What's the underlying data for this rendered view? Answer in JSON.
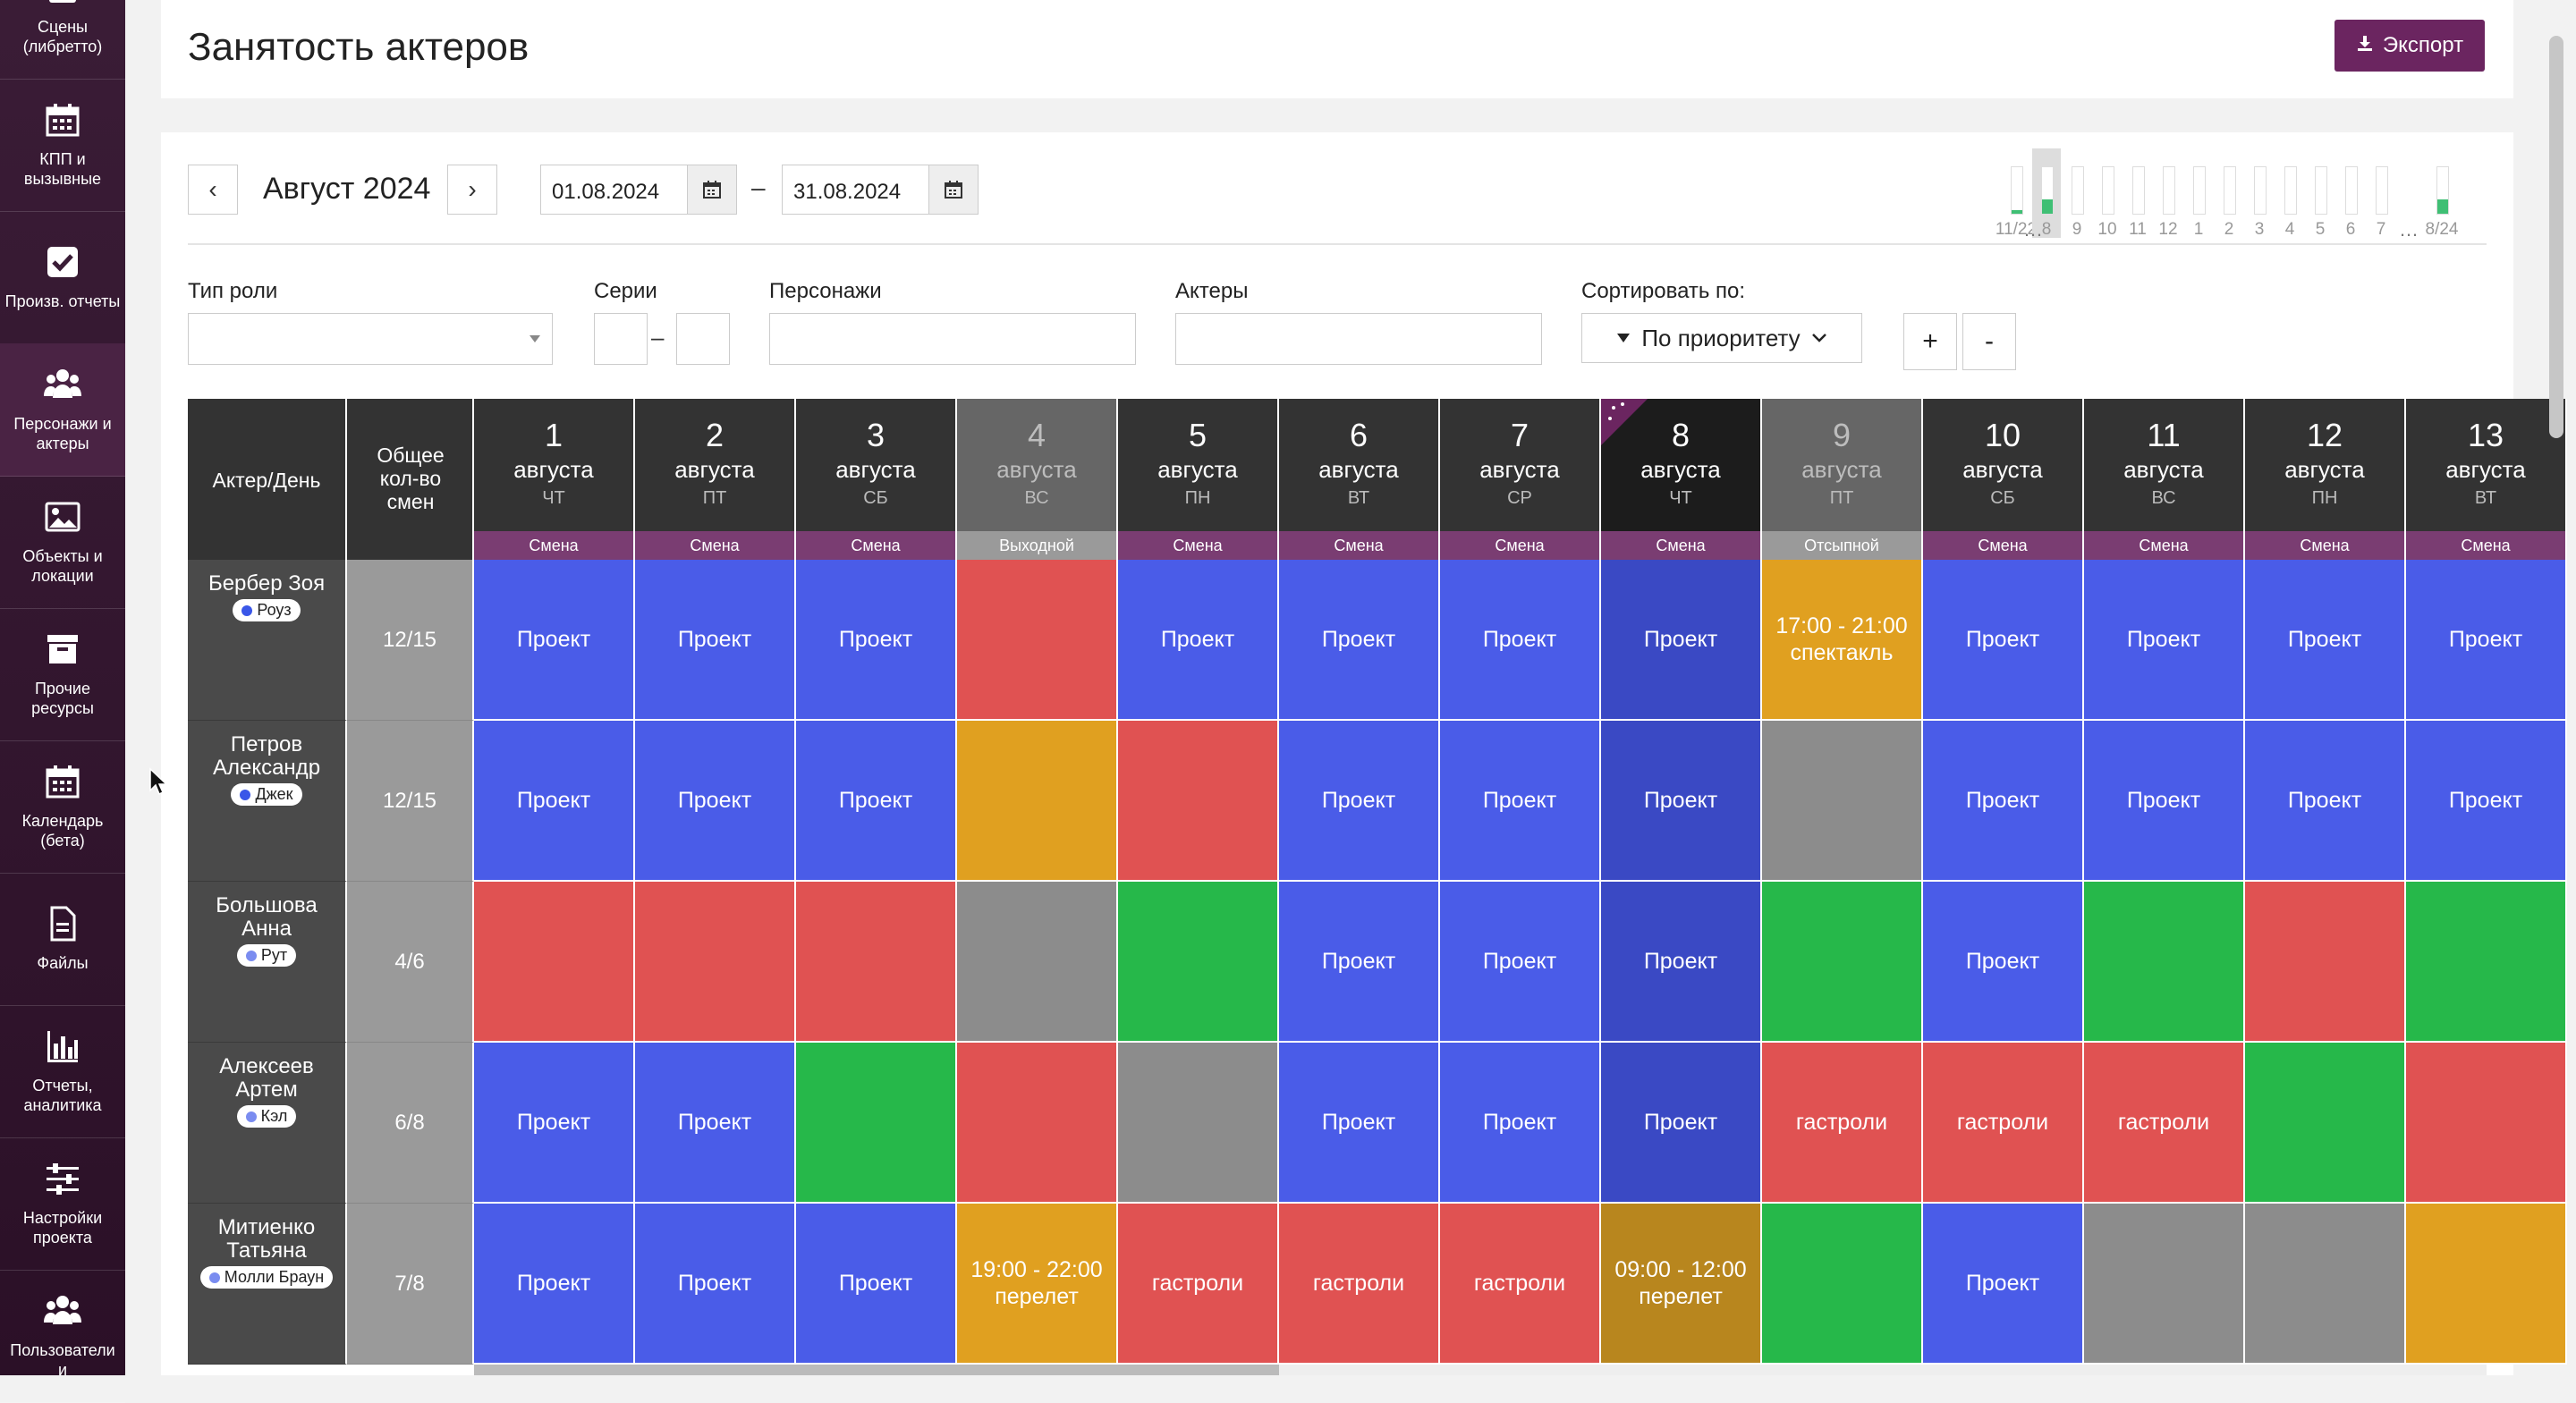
{
  "sidebar": {
    "items": [
      {
        "label": "Сцены (либретто)",
        "icon": "scroll-icon"
      },
      {
        "label": "КПП и вызывные",
        "icon": "calendar-icon"
      },
      {
        "label": "Произв. отчеты",
        "icon": "check-square-icon"
      },
      {
        "label": "Персонажи и актеры",
        "icon": "users-icon",
        "active": true
      },
      {
        "label": "Объекты и локации",
        "icon": "image-icon"
      },
      {
        "label": "Прочие ресурсы",
        "icon": "archive-icon"
      },
      {
        "label": "Календарь (бета)",
        "icon": "calendar-icon"
      },
      {
        "label": "Файлы",
        "icon": "file-icon"
      },
      {
        "label": "Отчеты, аналитика",
        "icon": "bar-chart-icon"
      },
      {
        "label": "Настройки проекта",
        "icon": "sliders-icon"
      },
      {
        "label": "Пользователи и",
        "icon": "users-icon"
      }
    ]
  },
  "header": {
    "title": "Занятость актеров",
    "export_label": "Экспорт"
  },
  "period": {
    "prev": "‹",
    "next": "›",
    "month": "Август 2024",
    "date_from": "01.08.2024",
    "date_to": "31.08.2024",
    "dash": "–"
  },
  "minibars": [
    {
      "label": "11/22",
      "fill": 0.08
    },
    {
      "label": "8",
      "fill": 0.3,
      "selected": true
    },
    {
      "label": "9",
      "fill": 0
    },
    {
      "label": "10",
      "fill": 0
    },
    {
      "label": "11",
      "fill": 0
    },
    {
      "label": "12",
      "fill": 0
    },
    {
      "label": "1",
      "fill": 0
    },
    {
      "label": "2",
      "fill": 0
    },
    {
      "label": "3",
      "fill": 0
    },
    {
      "label": "4",
      "fill": 0
    },
    {
      "label": "5",
      "fill": 0
    },
    {
      "label": "6",
      "fill": 0
    },
    {
      "label": "7",
      "fill": 0
    },
    {
      "label": "8/24",
      "fill": 0.3
    }
  ],
  "filters": {
    "role_type_label": "Тип роли",
    "series_label": "Серии",
    "series_dash": "–",
    "characters_label": "Персонажи",
    "actors_label": "Актеры",
    "sort_label": "Сортировать по:",
    "sort_value": "По приоритету",
    "plus": "+",
    "minus": "-"
  },
  "grid": {
    "actor_header": "Актер/День",
    "total_header": "Общее кол-во смен",
    "days": [
      {
        "num": "1",
        "month": "августа",
        "dow": "ЧТ",
        "type": "Смена"
      },
      {
        "num": "2",
        "month": "августа",
        "dow": "ПТ",
        "type": "Смена"
      },
      {
        "num": "3",
        "month": "августа",
        "dow": "СБ",
        "type": "Смена"
      },
      {
        "num": "4",
        "month": "августа",
        "dow": "ВС",
        "type": "Выходной",
        "off": true
      },
      {
        "num": "5",
        "month": "августа",
        "dow": "ПН",
        "type": "Смена"
      },
      {
        "num": "6",
        "month": "августа",
        "dow": "ВТ",
        "type": "Смена"
      },
      {
        "num": "7",
        "month": "августа",
        "dow": "СР",
        "type": "Смена"
      },
      {
        "num": "8",
        "month": "августа",
        "dow": "ЧТ",
        "type": "Смена",
        "today": true
      },
      {
        "num": "9",
        "month": "августа",
        "dow": "ПТ",
        "type": "Отсыпной",
        "off": true
      },
      {
        "num": "10",
        "month": "августа",
        "dow": "СБ",
        "type": "Смена"
      },
      {
        "num": "11",
        "month": "августа",
        "dow": "ВС",
        "type": "Смена"
      },
      {
        "num": "12",
        "month": "августа",
        "dow": "ПН",
        "type": "Смена"
      },
      {
        "num": "13",
        "month": "августа",
        "dow": "ВТ",
        "type": "Смена"
      }
    ],
    "rows": [
      {
        "name": "Бербер Зоя",
        "role": "Роуз",
        "role_color": "#3a57e8",
        "total": "12/15",
        "cells": [
          {
            "c": "blue",
            "t": "Проект"
          },
          {
            "c": "blue",
            "t": "Проект"
          },
          {
            "c": "blue",
            "t": "Проект"
          },
          {
            "c": "red",
            "t": ""
          },
          {
            "c": "blue",
            "t": "Проект"
          },
          {
            "c": "blue",
            "t": "Проект"
          },
          {
            "c": "blue",
            "t": "Проект"
          },
          {
            "c": "blue",
            "t": "Проект"
          },
          {
            "c": "orange",
            "t": "17:00 - 21:00 спектакль"
          },
          {
            "c": "blue",
            "t": "Проект"
          },
          {
            "c": "blue",
            "t": "Проект"
          },
          {
            "c": "blue",
            "t": "Проект"
          },
          {
            "c": "blue",
            "t": "Проект"
          }
        ]
      },
      {
        "name": "Петров Александр",
        "role": "Джек",
        "role_color": "#3a57e8",
        "total": "12/15",
        "cells": [
          {
            "c": "blue",
            "t": "Проект"
          },
          {
            "c": "blue",
            "t": "Проект"
          },
          {
            "c": "blue",
            "t": "Проект"
          },
          {
            "c": "orange",
            "t": ""
          },
          {
            "c": "red",
            "t": ""
          },
          {
            "c": "blue",
            "t": "Проект"
          },
          {
            "c": "blue",
            "t": "Проект"
          },
          {
            "c": "blue",
            "t": "Проект"
          },
          {
            "c": "gray",
            "t": ""
          },
          {
            "c": "blue",
            "t": "Проект"
          },
          {
            "c": "blue",
            "t": "Проект"
          },
          {
            "c": "blue",
            "t": "Проект"
          },
          {
            "c": "blue",
            "t": "Проект"
          }
        ]
      },
      {
        "name": "Большова Анна",
        "role": "Рут",
        "role_color": "#7a8cf0",
        "total": "4/6",
        "cells": [
          {
            "c": "red",
            "t": ""
          },
          {
            "c": "red",
            "t": ""
          },
          {
            "c": "red",
            "t": ""
          },
          {
            "c": "gray",
            "t": ""
          },
          {
            "c": "green",
            "t": ""
          },
          {
            "c": "blue",
            "t": "Проект"
          },
          {
            "c": "blue",
            "t": "Проект"
          },
          {
            "c": "blue",
            "t": "Проект"
          },
          {
            "c": "green",
            "t": ""
          },
          {
            "c": "blue",
            "t": "Проект"
          },
          {
            "c": "green",
            "t": ""
          },
          {
            "c": "red",
            "t": ""
          },
          {
            "c": "green",
            "t": ""
          }
        ]
      },
      {
        "name": "Алексеев Артем",
        "role": "Кэл",
        "role_color": "#7a8cf0",
        "total": "6/8",
        "cells": [
          {
            "c": "blue",
            "t": "Проект"
          },
          {
            "c": "blue",
            "t": "Проект"
          },
          {
            "c": "green",
            "t": ""
          },
          {
            "c": "red",
            "t": ""
          },
          {
            "c": "gray",
            "t": ""
          },
          {
            "c": "blue",
            "t": "Проект"
          },
          {
            "c": "blue",
            "t": "Проект"
          },
          {
            "c": "blue",
            "t": "Проект"
          },
          {
            "c": "red",
            "t": "гастроли"
          },
          {
            "c": "red",
            "t": "гастроли"
          },
          {
            "c": "red",
            "t": "гастроли"
          },
          {
            "c": "green",
            "t": ""
          },
          {
            "c": "red",
            "t": ""
          }
        ]
      },
      {
        "name": "Митиенко Татьяна",
        "role": "Молли Браун",
        "role_color": "#7a8cf0",
        "total": "7/8",
        "cells": [
          {
            "c": "blue",
            "t": "Проект"
          },
          {
            "c": "blue",
            "t": "Проект"
          },
          {
            "c": "blue",
            "t": "Проект"
          },
          {
            "c": "orange",
            "t": "19:00 - 22:00 перелет"
          },
          {
            "c": "red",
            "t": "гастроли"
          },
          {
            "c": "red",
            "t": "гастроли"
          },
          {
            "c": "red",
            "t": "гастроли"
          },
          {
            "c": "orange",
            "t": "09:00 - 12:00 перелет"
          },
          {
            "c": "green",
            "t": ""
          },
          {
            "c": "blue",
            "t": "Проект"
          },
          {
            "c": "gray",
            "t": ""
          },
          {
            "c": "gray",
            "t": ""
          },
          {
            "c": "orange",
            "t": ""
          }
        ]
      }
    ]
  },
  "colors": {
    "blue": "#4a5ce8",
    "blue_today": "#3a49c4",
    "red": "#e05252",
    "green": "#26b84a",
    "orange": "#e0a020",
    "orange_today": "#b8861e",
    "gray": "#8c8c8c",
    "header_dark": "#333333",
    "header_off": "#666666",
    "header_today": "#1c1c1c",
    "accent": "#6b2560"
  }
}
